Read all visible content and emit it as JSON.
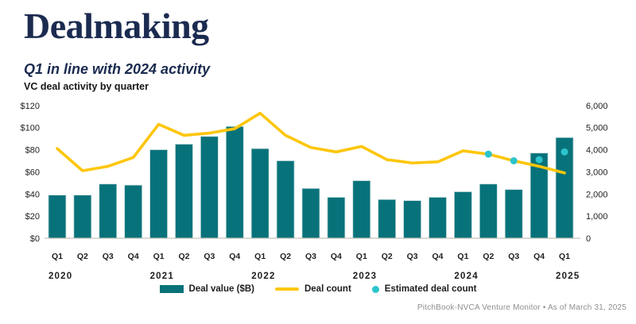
{
  "header": {
    "title": "Dealmaking",
    "subtitle": "Q1 in line with 2024 activity",
    "chart_label": "VC deal activity by quarter"
  },
  "legend": [
    {
      "label": "Deal value ($B)",
      "swatch": "bar-swatch"
    },
    {
      "label": "Deal count",
      "swatch": "line-swatch"
    },
    {
      "label": "Estimated deal count",
      "swatch": "dot-swatch"
    }
  ],
  "footer": {
    "source": "PitchBook-NVCA Venture Monitor  •  As of March 31, 2025"
  },
  "colors": {
    "navy": "#1b2b50",
    "bar": "#08727a",
    "line": "#fdc60b",
    "dot": "#2cc4cc",
    "axis_text": "#222222",
    "baseline": "#c8c4bc",
    "footer_text": "#8f8f8f"
  },
  "chart_data": {
    "type": "bar+line",
    "title": "VC deal activity by quarter",
    "grid": false,
    "legend_position": "bottom",
    "categories": [
      "Q1 2020",
      "Q2 2020",
      "Q3 2020",
      "Q4 2020",
      "Q1 2021",
      "Q2 2021",
      "Q3 2021",
      "Q4 2021",
      "Q1 2022",
      "Q2 2022",
      "Q3 2022",
      "Q4 2022",
      "Q1 2023",
      "Q2 2023",
      "Q3 2023",
      "Q4 2023",
      "Q1 2024",
      "Q2 2024",
      "Q3 2024",
      "Q4 2024",
      "Q1 2025"
    ],
    "series": [
      {
        "name": "Deal value ($B)",
        "type": "bar",
        "axis": "left",
        "values": [
          39,
          39,
          49,
          48,
          80,
          85,
          92,
          101,
          81,
          70,
          45,
          37,
          52,
          35,
          34,
          37,
          42,
          49,
          44,
          77,
          91
        ]
      },
      {
        "name": "Deal count",
        "type": "line",
        "axis": "right",
        "values": [
          4050,
          3050,
          3250,
          3650,
          5150,
          4650,
          4750,
          4950,
          5650,
          4650,
          4100,
          3900,
          4150,
          3550,
          3400,
          3450,
          3950,
          3800,
          3500,
          3250,
          2950
        ]
      },
      {
        "name": "Estimated deal count",
        "type": "scatter",
        "axis": "right",
        "points": [
          [
            "Q2 2024",
            3800
          ],
          [
            "Q3 2024",
            3500
          ],
          [
            "Q4 2024",
            3550
          ],
          [
            "Q1 2025",
            3900
          ]
        ]
      }
    ],
    "left_axis": {
      "ticks": [
        "$0",
        "$20",
        "$40",
        "$60",
        "$80",
        "$100",
        "$120"
      ],
      "range": [
        0,
        120
      ]
    },
    "right_axis": {
      "ticks": [
        "0",
        "1,000",
        "2,000",
        "3,000",
        "4,000",
        "5,000",
        "6,000"
      ],
      "range": [
        0,
        6000
      ]
    },
    "x_axis": {
      "quarter_labels": [
        "Q1",
        "Q2",
        "Q3",
        "Q4",
        "Q1",
        "Q2",
        "Q3",
        "Q4",
        "Q1",
        "Q2",
        "Q3",
        "Q4",
        "Q1",
        "Q2",
        "Q3",
        "Q4",
        "Q1",
        "Q2",
        "Q3",
        "Q4",
        "Q1"
      ],
      "years": [
        [
          "2020",
          0
        ],
        [
          "2021",
          4
        ],
        [
          "2022",
          8
        ],
        [
          "2023",
          12
        ],
        [
          "2024",
          16
        ],
        [
          "2025",
          20
        ]
      ]
    }
  }
}
